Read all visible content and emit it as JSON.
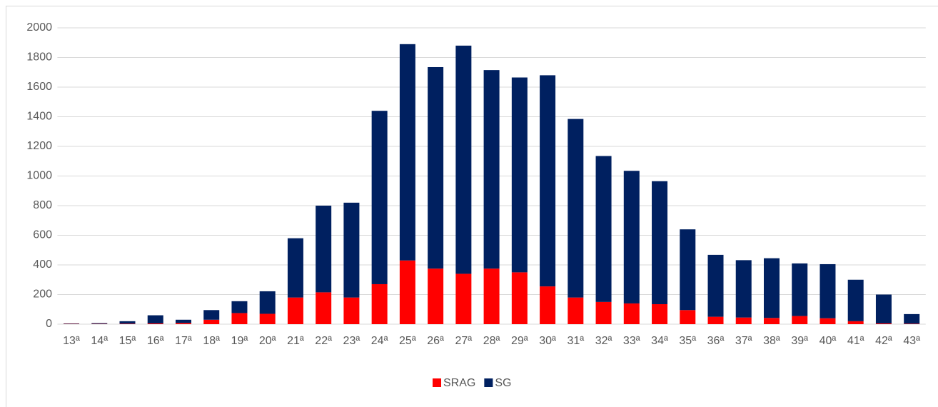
{
  "chart_data": {
    "type": "stacked_bar",
    "categories": [
      "13ª",
      "14ª",
      "15ª",
      "16ª",
      "17ª",
      "18ª",
      "19ª",
      "20ª",
      "21ª",
      "22ª",
      "23ª",
      "24ª",
      "25ª",
      "26ª",
      "27ª",
      "28ª",
      "29ª",
      "30ª",
      "31ª",
      "32ª",
      "33ª",
      "34ª",
      "35ª",
      "36ª",
      "37ª",
      "38ª",
      "39ª",
      "40ª",
      "41ª",
      "42ª",
      "43ª"
    ],
    "series": [
      {
        "name": "SRAG",
        "color": "#ff0000",
        "values": [
          2,
          2,
          3,
          5,
          8,
          30,
          75,
          70,
          180,
          215,
          180,
          270,
          430,
          375,
          340,
          375,
          350,
          255,
          180,
          150,
          140,
          135,
          95,
          50,
          45,
          42,
          55,
          40,
          20,
          5,
          3
        ]
      },
      {
        "name": "SG",
        "color": "#002060",
        "values": [
          3,
          5,
          17,
          55,
          22,
          65,
          80,
          152,
          400,
          585,
          640,
          1170,
          1460,
          1360,
          1540,
          1340,
          1315,
          1425,
          1205,
          985,
          895,
          830,
          545,
          418,
          387,
          403,
          355,
          365,
          280,
          195,
          65
        ]
      }
    ],
    "ylim": [
      0,
      2000
    ],
    "yticks": [
      0,
      200,
      400,
      600,
      800,
      1000,
      1200,
      1400,
      1600,
      1800,
      2000
    ],
    "grid": true,
    "legend": "bottom"
  }
}
